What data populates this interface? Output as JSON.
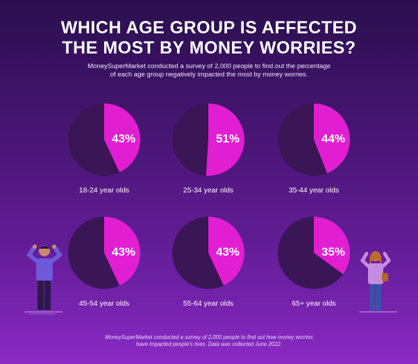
{
  "header": {
    "title_line1": "WHICH AGE GROUP IS AFFECTED",
    "title_line2": "THE MOST BY MONEY WORRIES?",
    "subtitle_line1": "MoneySuperMarket conducted a survey of 2,000 people to find out the percentage",
    "subtitle_line2": "of each age group negatively impacted the most by money worries."
  },
  "footer": {
    "note_line1": "MoneySuperMarket conducted a survey of 2,000 people to find out how money worries",
    "note_line2": "have impacted people's lives. Data was collected June 2022."
  },
  "colors": {
    "slice": "#e21ed2",
    "remainder": "#3a1656",
    "text": "#ffffff"
  },
  "chart_data": {
    "type": "pie",
    "unit": "%",
    "categories": [
      "18-24 year olds",
      "25-34 year olds",
      "35-44 year olds",
      "45-54 year olds",
      "55-64 year olds",
      "65+ year olds"
    ],
    "values": [
      43,
      51,
      44,
      43,
      43,
      35
    ],
    "labels": [
      "43%",
      "51%",
      "44%",
      "43%",
      "43%",
      "35%"
    ]
  }
}
